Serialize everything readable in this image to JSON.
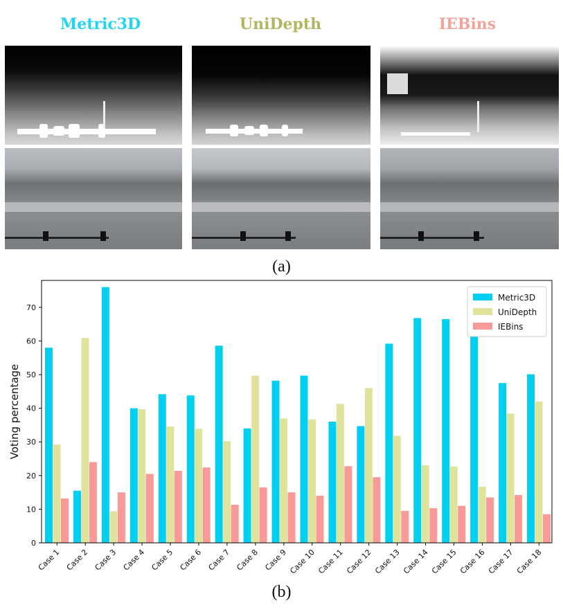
{
  "panel_a": {
    "titles": [
      {
        "label": "Metric3D",
        "color": "#1fd6ee"
      },
      {
        "label": "UniDepth",
        "color": "#b2b560"
      },
      {
        "label": "IEBins",
        "color": "#f3a29c"
      }
    ],
    "caption": "(a)"
  },
  "panel_b": {
    "caption": "(b)"
  },
  "chart_data": {
    "type": "bar",
    "categories": [
      "Case 1",
      "Case 2",
      "Case 3",
      "Case 4",
      "Case 5",
      "Case 6",
      "Case 7",
      "Case 8",
      "Case 9",
      "Case 10",
      "Case 11",
      "Case 12",
      "Case 13",
      "Case 14",
      "Case 15",
      "Case 16",
      "Case 17",
      "Case 18"
    ],
    "series": [
      {
        "name": "Metric3D",
        "color": "#00cfef",
        "values": [
          58,
          15.5,
          76,
          40,
          44.2,
          43.8,
          58.6,
          34,
          48.2,
          49.7,
          36,
          34.7,
          59.2,
          66.8,
          66.5,
          69.8,
          47.5,
          50.1
        ]
      },
      {
        "name": "UniDepth",
        "color": "#dfe39c",
        "values": [
          29.2,
          60.9,
          9.4,
          39.7,
          34.6,
          33.9,
          30.2,
          49.7,
          37,
          36.7,
          41.3,
          46,
          31.8,
          23.1,
          22.7,
          16.7,
          38.4,
          42
        ]
      },
      {
        "name": "IEBins",
        "color": "#f79a98",
        "values": [
          13.2,
          24,
          15,
          20.5,
          21.4,
          22.4,
          11.3,
          16.5,
          15,
          14,
          22.8,
          19.5,
          9.5,
          10.3,
          11,
          13.5,
          14.2,
          8.5
        ]
      }
    ],
    "ylabel": "Voting percentage",
    "xlabel": "",
    "ylim": [
      0,
      78
    ],
    "yticks": [
      0,
      10,
      20,
      30,
      40,
      50,
      60,
      70
    ],
    "grid": false,
    "legend": "top-right"
  }
}
